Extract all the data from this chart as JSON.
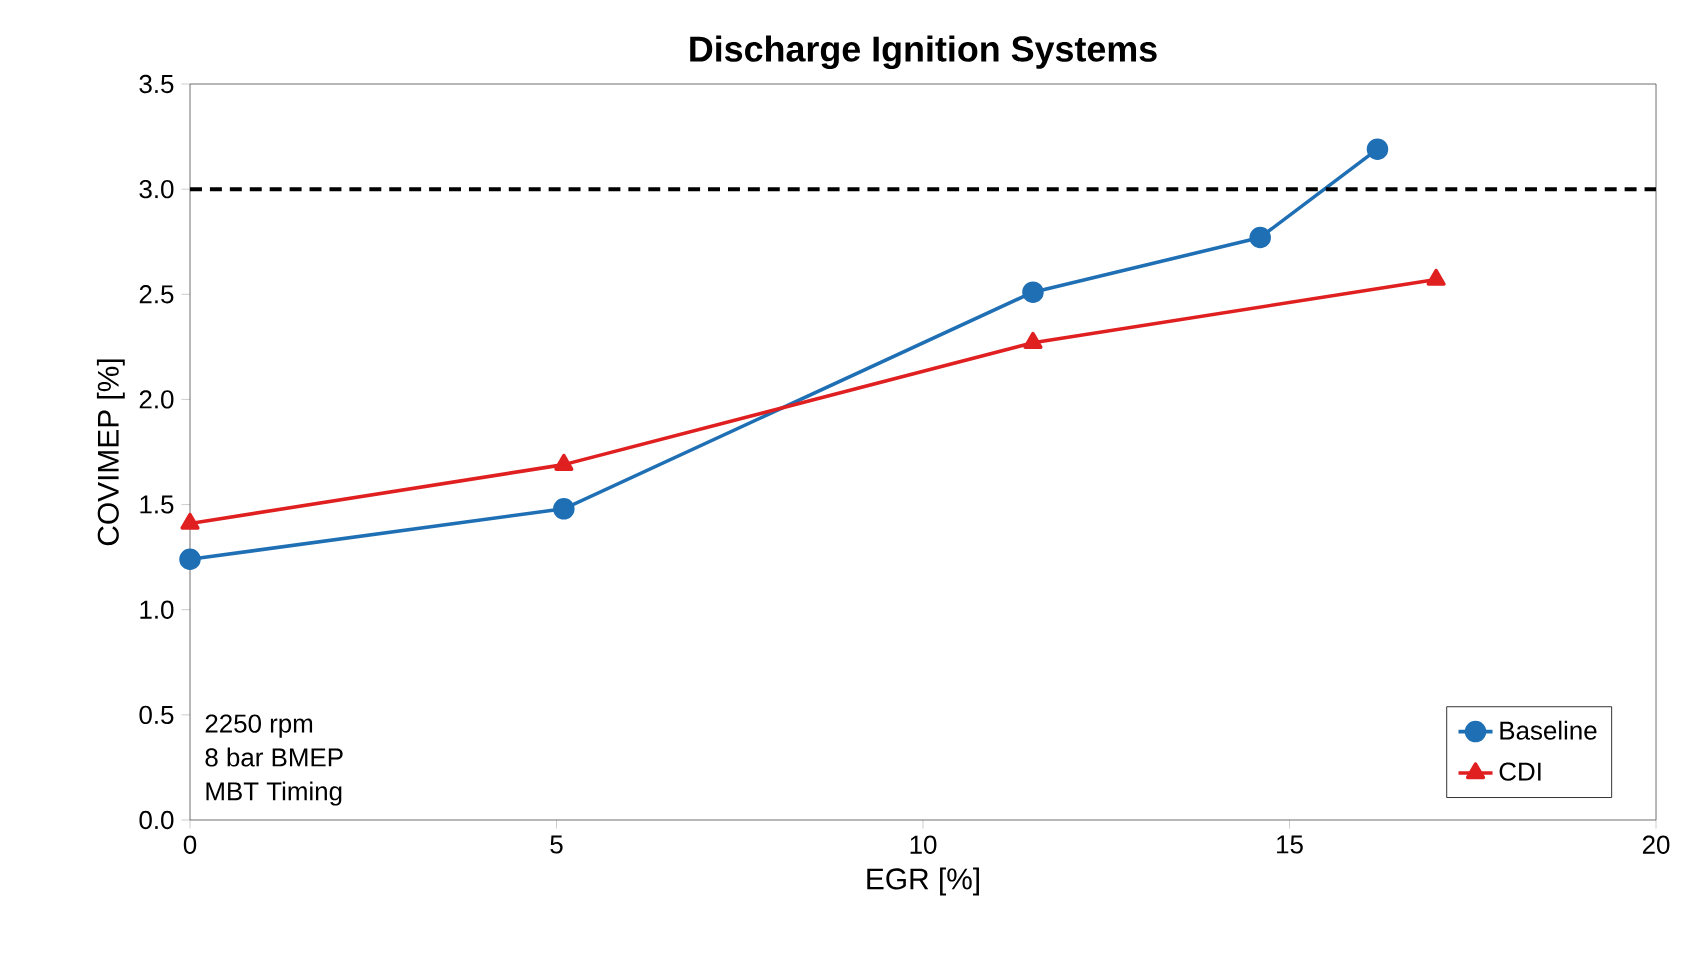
{
  "chart_data": {
    "type": "line",
    "title": "Discharge Ignition Systems",
    "xlabel": "EGR [%]",
    "ylabel": "COVIMEP [%]",
    "xlim": [
      0,
      20
    ],
    "xticks": [
      0,
      5,
      10,
      15,
      20
    ],
    "ylim": [
      0,
      3.5
    ],
    "yticks": [
      {
        "value": 0,
        "label": "0.0"
      },
      {
        "value": 0.5,
        "label": "0.5"
      },
      {
        "value": 1,
        "label": "1.0"
      },
      {
        "value": 1.5,
        "label": "1.5"
      },
      {
        "value": 2,
        "label": "2.0"
      },
      {
        "value": 2.5,
        "label": "2.5"
      },
      {
        "value": 3,
        "label": "3.0"
      },
      {
        "value": 3.5,
        "label": "3.5"
      }
    ],
    "grid": false,
    "legend": "bottom right",
    "line_style": "solid",
    "series": [
      {
        "name": "Baseline",
        "color": "#1f6fb5",
        "marker": "circle",
        "x": [
          0,
          5.1,
          11.5,
          14.6,
          16.2
        ],
        "values": [
          1.24,
          1.48,
          2.51,
          2.77,
          3.19
        ]
      },
      {
        "name": "CDI",
        "color": "#e02020",
        "marker": "triangle",
        "x": [
          0,
          5.1,
          11.5,
          17
        ],
        "values": [
          1.41,
          1.69,
          2.27,
          2.57
        ]
      }
    ],
    "ref_lines": [
      {
        "axis": "y",
        "value": 3,
        "color": "#000000",
        "line_style": "dashed"
      }
    ],
    "annotations": [
      "2250 rpm",
      "8 bar BMEP",
      "MBT Timing"
    ]
  }
}
